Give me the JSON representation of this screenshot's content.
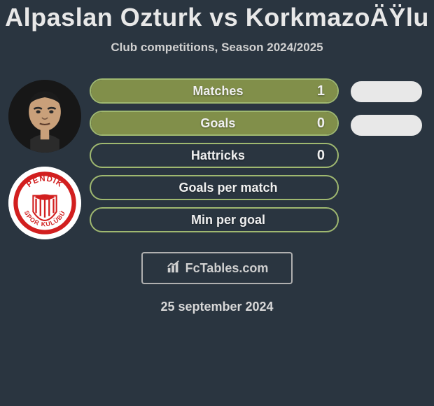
{
  "title": "Alpaslan Ozturk vs KorkmazoÄŸlu",
  "subtitle": "Club competitions, Season 2024/2025",
  "avatars": {
    "player": {
      "bg": "#141414"
    },
    "club": {
      "bg": "#ffffff",
      "text": "PENDİK",
      "ring": "#d21f1f"
    }
  },
  "stats": [
    {
      "label": "Matches",
      "value": "1",
      "fill": true
    },
    {
      "label": "Goals",
      "value": "0",
      "fill": true
    },
    {
      "label": "Hattricks",
      "value": "0",
      "fill": false
    },
    {
      "label": "Goals per match",
      "value": "",
      "fill": false
    },
    {
      "label": "Min per goal",
      "value": "",
      "fill": false
    }
  ],
  "right_pills": 2,
  "footer": {
    "brand": "FcTables.com"
  },
  "date": "25 september 2024",
  "colors": {
    "page_bg": "#2a3540",
    "bar_border": "#9fb870",
    "bar_fill": "#818f4a",
    "pill_bg": "#e8e8e8",
    "text": "#e8e8e8"
  }
}
